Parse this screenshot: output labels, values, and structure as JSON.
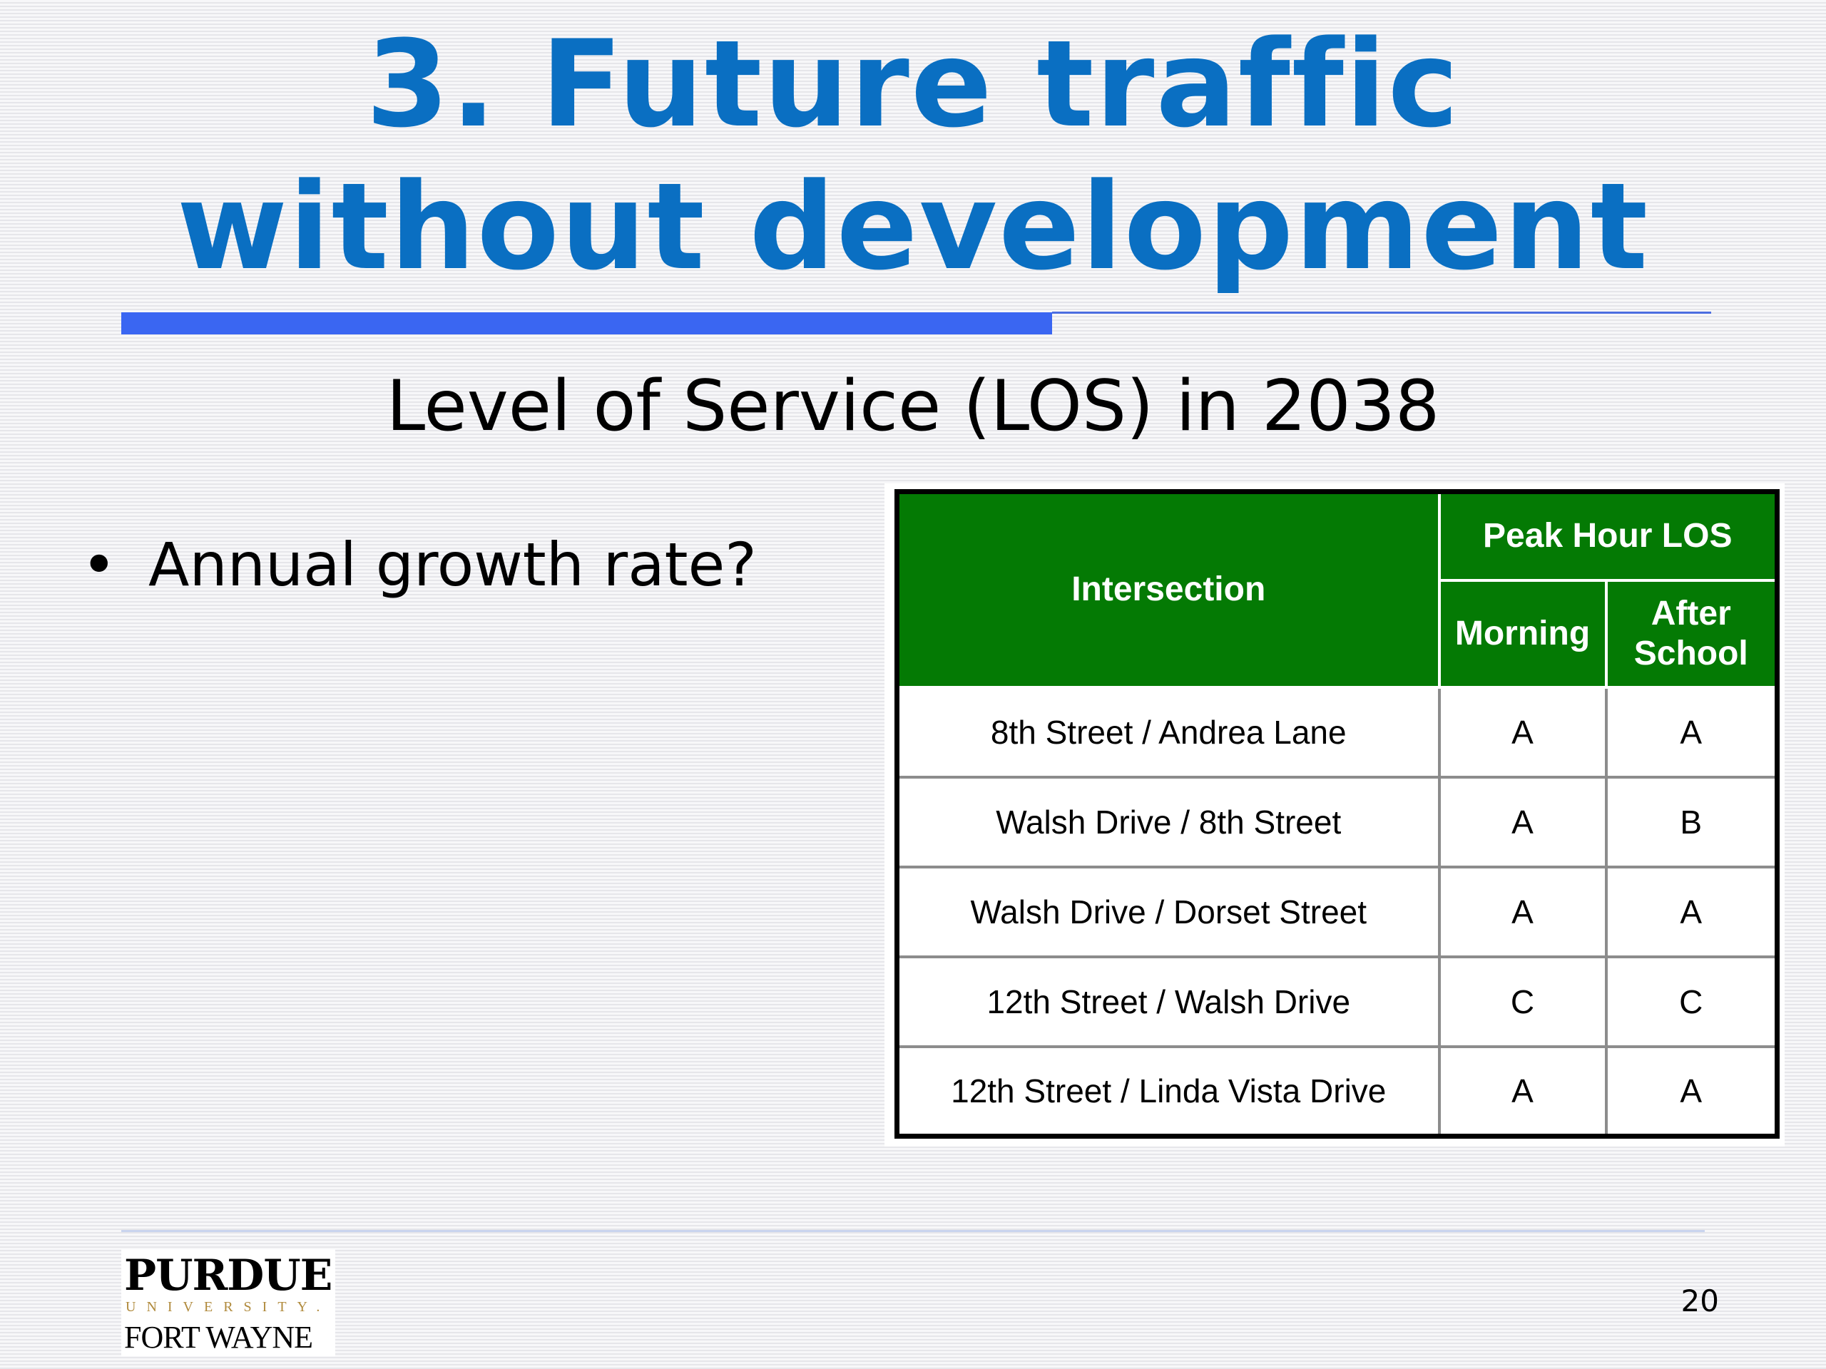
{
  "slide": {
    "title_line1": "3. Future traffic",
    "title_line2": "without development",
    "subtitle": "Level of Service (LOS) in 2038",
    "bullets": [
      "Annual growth rate?"
    ],
    "page_number": "20",
    "colors": {
      "title": "#0a6fc2",
      "rule": "#3a66f2",
      "table_header": "#047a04"
    }
  },
  "table": {
    "header": {
      "intersection": "Intersection",
      "group": "Peak Hour LOS",
      "morning": "Morning",
      "after_school_line1": "After",
      "after_school_line2": "School"
    },
    "rows": [
      {
        "intersection": "8th Street / Andrea Lane",
        "morning": "A",
        "after_school": "A"
      },
      {
        "intersection": "Walsh Drive / 8th Street",
        "morning": "A",
        "after_school": "B"
      },
      {
        "intersection": "Walsh Drive / Dorset Street",
        "morning": "A",
        "after_school": "A"
      },
      {
        "intersection": "12th Street / Walsh Drive",
        "morning": "C",
        "after_school": "C"
      },
      {
        "intersection": "12th Street / Linda Vista Drive",
        "morning": "A",
        "after_school": "A"
      }
    ]
  },
  "logo": {
    "top": "PURDUE",
    "middle": "UNIVERSITY.",
    "bottom": "FORT WAYNE"
  }
}
